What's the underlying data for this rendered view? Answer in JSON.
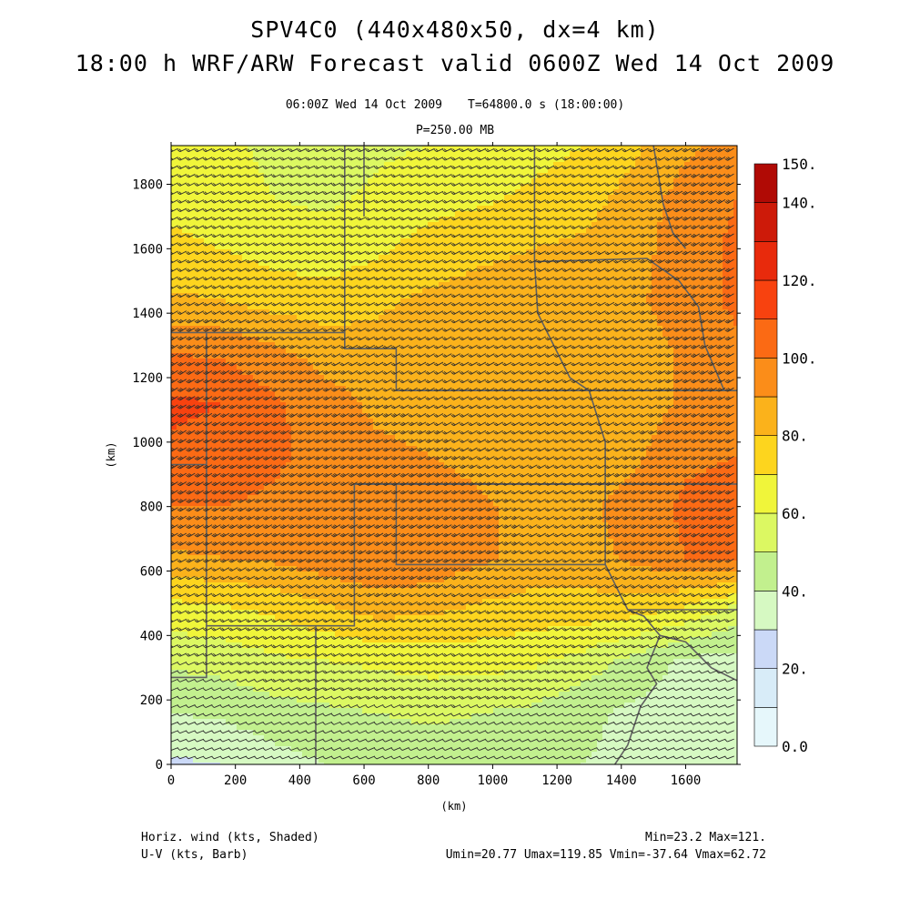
{
  "header": {
    "title_line1": "SPV4C0 (440x480x50, dx=4 km)",
    "title_line2": "18:00 h WRF/ARW Forecast valid 0600Z Wed 14 Oct 2009",
    "valid_time": "06:00Z Wed 14 Oct 2009",
    "model_time": "T=64800.0 s (18:00:00)",
    "pressure_level": "P=250.00 MB"
  },
  "footer": {
    "shaded_field": "Horiz. wind (kts, Shaded)",
    "barb_field": "U-V (kts, Barb)",
    "minmax": "Min=23.2 Max=121.",
    "uv_stats": "Umin=20.77 Umax=119.85 Vmin=-37.64 Vmax=62.72"
  },
  "colors": {
    "levels": [
      {
        "min": 0,
        "max": 10,
        "color": "#e6f7fb"
      },
      {
        "min": 10,
        "max": 20,
        "color": "#d8ecf8"
      },
      {
        "min": 20,
        "max": 30,
        "color": "#cbd9f7"
      },
      {
        "min": 30,
        "max": 40,
        "color": "#d6f9c2"
      },
      {
        "min": 40,
        "max": 50,
        "color": "#c2f08e"
      },
      {
        "min": 50,
        "max": 60,
        "color": "#dcf862"
      },
      {
        "min": 60,
        "max": 70,
        "color": "#f0f53a"
      },
      {
        "min": 70,
        "max": 80,
        "color": "#fdd51e"
      },
      {
        "min": 80,
        "max": 90,
        "color": "#fbb21b"
      },
      {
        "min": 90,
        "max": 100,
        "color": "#fb8d19"
      },
      {
        "min": 100,
        "max": 110,
        "color": "#fb6a14"
      },
      {
        "min": 110,
        "max": 120,
        "color": "#f8420f"
      },
      {
        "min": 120,
        "max": 130,
        "color": "#e82a0c"
      },
      {
        "min": 130,
        "max": 140,
        "color": "#cd1a09"
      },
      {
        "min": 140,
        "max": 150,
        "color": "#b00a05"
      }
    ],
    "barb": "#2c2c2c",
    "border": "#606060"
  },
  "chart_data": {
    "type": "heatmap",
    "xlabel": "(km)",
    "ylabel": "(km)",
    "xlim": [
      0,
      1760
    ],
    "ylim": [
      0,
      1920
    ],
    "xticks": [
      0,
      200,
      400,
      600,
      800,
      1000,
      1200,
      1400,
      1600
    ],
    "yticks": [
      0,
      200,
      400,
      600,
      800,
      1000,
      1200,
      1400,
      1600,
      1800
    ],
    "colorbar_labels": [
      "0.0",
      "20.",
      "40.",
      "60.",
      "80.",
      "100.",
      "120.",
      "140.",
      "150."
    ],
    "colorbar_label_values": [
      0,
      20,
      40,
      60,
      80,
      100,
      120,
      140,
      150
    ],
    "field": "horizontal wind speed (kts)",
    "grid_x_km": [
      0,
      160,
      320,
      480,
      640,
      800,
      960,
      1120,
      1280,
      1440,
      1600,
      1760
    ],
    "grid_y_km": [
      1920,
      1760,
      1600,
      1440,
      1280,
      1120,
      960,
      800,
      640,
      480,
      320,
      160,
      0
    ],
    "speed_kts": [
      [
        65,
        62,
        58,
        56,
        58,
        60,
        62,
        66,
        70,
        78,
        88,
        95
      ],
      [
        68,
        64,
        60,
        58,
        62,
        66,
        68,
        72,
        76,
        84,
        94,
        100
      ],
      [
        72,
        70,
        66,
        64,
        68,
        74,
        78,
        80,
        82,
        86,
        96,
        102
      ],
      [
        82,
        80,
        76,
        74,
        78,
        82,
        84,
        84,
        84,
        88,
        96,
        102
      ],
      [
        100,
        98,
        92,
        86,
        84,
        86,
        86,
        84,
        82,
        84,
        92,
        98
      ],
      [
        112,
        110,
        102,
        94,
        88,
        86,
        84,
        80,
        80,
        84,
        92,
        96
      ],
      [
        108,
        106,
        102,
        96,
        92,
        90,
        86,
        82,
        82,
        88,
        98,
        100
      ],
      [
        100,
        100,
        98,
        96,
        98,
        98,
        92,
        86,
        88,
        94,
        102,
        104
      ],
      [
        88,
        90,
        92,
        96,
        100,
        98,
        92,
        86,
        86,
        92,
        100,
        102
      ],
      [
        66,
        68,
        72,
        78,
        84,
        82,
        78,
        76,
        76,
        74,
        68,
        56
      ],
      [
        52,
        54,
        58,
        60,
        62,
        64,
        64,
        62,
        56,
        46,
        38,
        36
      ],
      [
        40,
        42,
        46,
        48,
        50,
        52,
        50,
        48,
        42,
        38,
        36,
        38
      ],
      [
        28,
        30,
        36,
        40,
        42,
        44,
        44,
        42,
        40,
        38,
        36,
        34
      ]
    ],
    "wind_direction": "mostly southwesterly (from SW toward NE)"
  }
}
